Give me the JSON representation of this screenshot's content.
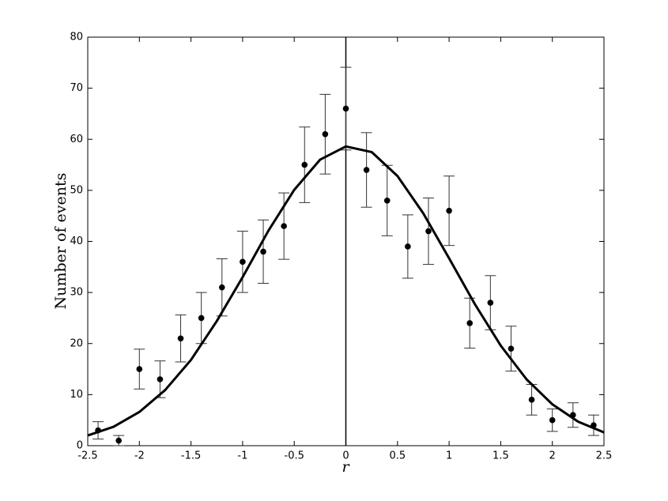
{
  "chart_data": {
    "type": "scatter",
    "xlabel": "r",
    "ylabel": "Number of events",
    "xlim": [
      -2.5,
      2.5
    ],
    "ylim": [
      0,
      80
    ],
    "xticks": [
      -2.5,
      -2,
      -1.5,
      -1,
      -0.5,
      0,
      0.5,
      1,
      1.5,
      2,
      2.5
    ],
    "yticks": [
      0,
      10,
      20,
      30,
      40,
      50,
      60,
      70,
      80
    ],
    "grid": false,
    "vlines": [
      0
    ],
    "series": [
      {
        "type": "scatter",
        "color": "#000000",
        "x": [
          -2.4,
          -2.2,
          -2.0,
          -1.8,
          -1.6,
          -1.4,
          -1.2,
          -1.0,
          -0.8,
          -0.6,
          -0.4,
          -0.2,
          0.0,
          0.2,
          0.4,
          0.6,
          0.8,
          1.0,
          1.2,
          1.4,
          1.6,
          1.8,
          2.0,
          2.2,
          2.4
        ],
        "values": [
          3,
          1,
          15,
          13,
          21,
          25,
          31,
          36,
          38,
          43,
          55,
          61,
          66,
          54,
          48,
          39,
          42,
          46,
          24,
          28,
          19,
          9,
          5,
          6,
          4
        ],
        "errors": [
          1.7,
          1,
          3.9,
          3.6,
          4.6,
          5,
          5.6,
          6,
          6.2,
          6.5,
          7.4,
          7.8,
          8.1,
          7.3,
          6.9,
          6.2,
          6.5,
          6.8,
          4.9,
          5.3,
          4.4,
          3,
          2.2,
          2.4,
          2
        ]
      },
      {
        "type": "line",
        "color": "#000000",
        "x": [
          -2.5,
          -2.25,
          -2.0,
          -1.75,
          -1.5,
          -1.25,
          -1.0,
          -0.75,
          -0.5,
          -0.25,
          0.0,
          0.25,
          0.5,
          0.75,
          1.0,
          1.25,
          1.5,
          1.75,
          2.0,
          2.25,
          2.5
        ],
        "values": [
          2.0,
          3.7,
          6.6,
          10.9,
          16.8,
          24.4,
          33.0,
          42.1,
          50.1,
          56.0,
          58.6,
          57.5,
          52.8,
          45.5,
          36.7,
          27.7,
          19.6,
          13.0,
          8.1,
          4.7,
          2.6
        ]
      }
    ]
  }
}
